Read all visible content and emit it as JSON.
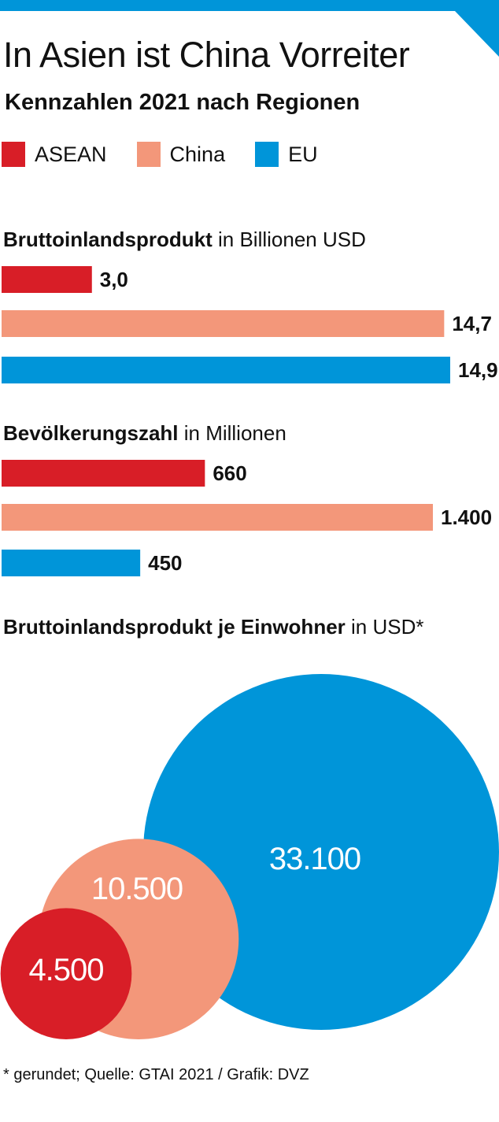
{
  "colors": {
    "accent": "#0095d9",
    "asean": "#d81e27",
    "china": "#f3977a",
    "eu": "#0095d9"
  },
  "title": "In Asien ist China Vorreiter",
  "subtitle": "Kennzahlen 2021 nach Regionen",
  "legend": [
    {
      "label": "ASEAN",
      "color": "#d81e27"
    },
    {
      "label": "China",
      "color": "#f3977a"
    },
    {
      "label": "EU",
      "color": "#0095d9"
    }
  ],
  "sections": {
    "gdp": {
      "title_bold": "Bruttoinlandsprodukt",
      "title_rest": " in Billionen USD"
    },
    "population": {
      "title_bold": "Bevölkerungszahl",
      "title_rest": " in Millionen"
    },
    "gdp_per_capita": {
      "title_bold": "Bruttoinlandsprodukt je Einwohner",
      "title_rest": " in USD*"
    }
  },
  "footer": "* gerundet; Quelle: GTAI 2021 / Grafik: DVZ",
  "chart_data": [
    {
      "type": "bar",
      "orientation": "horizontal",
      "title": "Bruttoinlandsprodukt in Billionen USD",
      "categories": [
        "ASEAN",
        "China",
        "EU"
      ],
      "values": [
        3.0,
        14.7,
        14.9
      ],
      "value_labels": [
        "3,0",
        "14,7",
        "14,9"
      ],
      "xlim": [
        0,
        14.9
      ]
    },
    {
      "type": "bar",
      "orientation": "horizontal",
      "title": "Bevölkerungszahl in Millionen",
      "categories": [
        "ASEAN",
        "China",
        "EU"
      ],
      "values": [
        660,
        1400,
        450
      ],
      "value_labels": [
        "660",
        "1.400",
        "450"
      ],
      "xlim": [
        0,
        1400
      ]
    },
    {
      "type": "bubble",
      "title": "Bruttoinlandsprodukt je Einwohner in USD*",
      "categories": [
        "ASEAN",
        "China",
        "EU"
      ],
      "values": [
        4500,
        10500,
        33100
      ],
      "value_labels": [
        "4.500",
        "10.500",
        "33.100"
      ]
    }
  ]
}
